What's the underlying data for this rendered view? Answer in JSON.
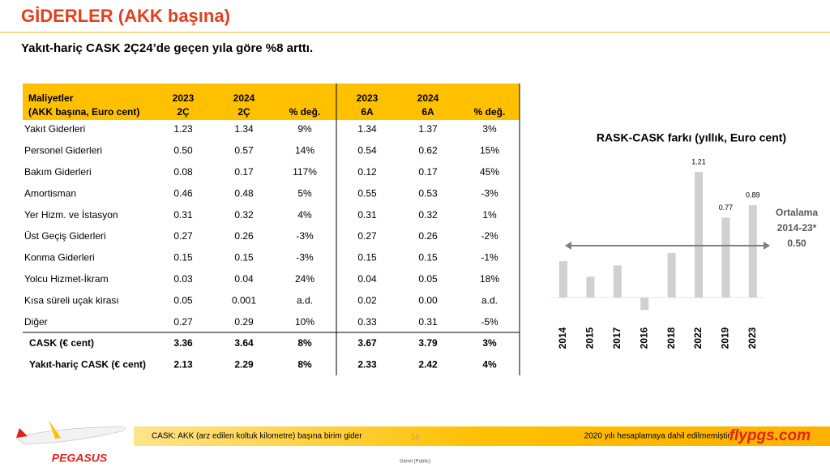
{
  "header": {
    "title": "GİDERLER (AKK başına)",
    "subtitle": "Yakıt-hariç CASK 2Ç24’de geçen yıla göre %8 arttı."
  },
  "table": {
    "columns": [
      [
        "Maliyetler",
        "(AKK başına, Euro cent)"
      ],
      [
        "2023",
        "2Ç"
      ],
      [
        "2024",
        "2Ç"
      ],
      [
        "% değ."
      ],
      [
        "2023",
        "6A"
      ],
      [
        "2024",
        "6A"
      ],
      [
        "% değ."
      ]
    ],
    "rows": [
      [
        "Yakıt Giderleri",
        "1.23",
        "1.34",
        "9%",
        "1.34",
        "1.37",
        "3%"
      ],
      [
        "Personel Giderleri",
        "0.50",
        "0.57",
        "14%",
        "0.54",
        "0.62",
        "15%"
      ],
      [
        "Bakım Giderleri",
        "0.08",
        "0.17",
        "117%",
        "0.12",
        "0.17",
        "45%"
      ],
      [
        "Amortisman",
        "0.46",
        "0.48",
        "5%",
        "0.55",
        "0.53",
        "-3%"
      ],
      [
        "Yer Hizm. ve İstasyon",
        "0.31",
        "0.32",
        "4%",
        "0.31",
        "0.32",
        "1%"
      ],
      [
        "Üst Geçiş Giderleri",
        "0.27",
        "0.26",
        "-3%",
        "0.27",
        "0.26",
        "-2%"
      ],
      [
        "Konma Giderleri",
        "0.15",
        "0.15",
        "-3%",
        "0.15",
        "0.15",
        "-1%"
      ],
      [
        "Yolcu Hizmet-İkram",
        "0.03",
        "0.04",
        "24%",
        "0.04",
        "0.05",
        "18%"
      ],
      [
        "Kısa süreli uçak kirası",
        "0.05",
        "0.001",
        "a.d.",
        "0.02",
        "0.00",
        "a.d."
      ],
      [
        "Diğer",
        "0.27",
        "0.29",
        "10%",
        "0.33",
        "0.31",
        "-5%"
      ],
      [
        "CASK (€ cent)",
        "3.36",
        "3.64",
        "8%",
        "3.67",
        "3.79",
        "3%"
      ],
      [
        "Yakıt-hariç CASK (€ cent)",
        "2.13",
        "2.29",
        "8%",
        "2.33",
        "2.42",
        "4%"
      ]
    ]
  },
  "chart_data": {
    "type": "bar",
    "title": "RASK-CASK farkı (yıllık, Euro cent)",
    "categories": [
      "2014",
      "2015",
      "2017",
      "2016",
      "2018",
      "2022",
      "2019",
      "2023"
    ],
    "values": [
      0.35,
      0.2,
      0.31,
      -0.12,
      0.43,
      1.21,
      0.77,
      0.89
    ],
    "value_labels": [
      null,
      null,
      null,
      null,
      null,
      "1.21",
      "0.77",
      "0.89"
    ],
    "color": "#d0d0d0",
    "ylim": [
      -0.2,
      1.3
    ],
    "average": {
      "value": 0.5,
      "label": "0.50",
      "text": [
        "Ortalama",
        "2014-23*"
      ]
    }
  },
  "footer": {
    "note": "CASK: AKK (arz edilen koltuk kilometre) başına birim gider",
    "page": "16",
    "remark": "2020 yılı hesaplamaya dahil edilmemiştir.",
    "site": "flypgs.com",
    "brand": "PEGASUS",
    "classification": "Genel (Public)"
  }
}
